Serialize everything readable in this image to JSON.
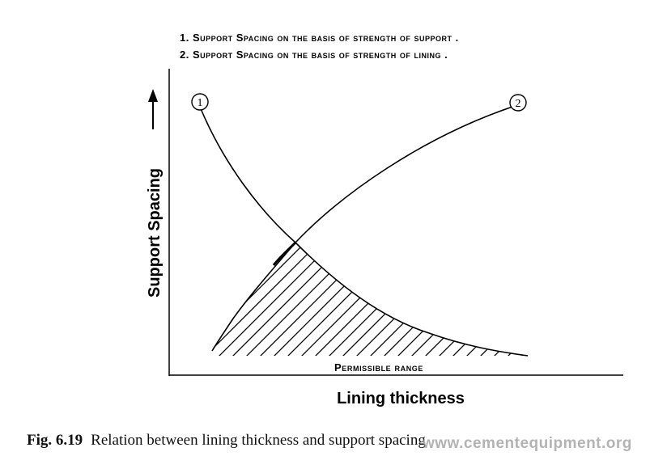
{
  "chart_data": {
    "type": "line",
    "title_lines": [
      "1. Support Spacing on the basis of strength of support .",
      "2. Support Spacing on the basis of strength of lining ."
    ],
    "xlabel": "Lining thickness",
    "ylabel": "Support Spacing",
    "region_label": "Permissible range",
    "grid": false,
    "series": [
      {
        "name": "1"
      },
      {
        "name": "2"
      }
    ]
  },
  "caption": {
    "fig": "Fig. 6.19",
    "text": "Relation between lining thickness and support spacing"
  },
  "watermark": "www.cementequipment.org",
  "colors": {
    "ink": "#000000",
    "watermark": "#9a9a9a"
  }
}
